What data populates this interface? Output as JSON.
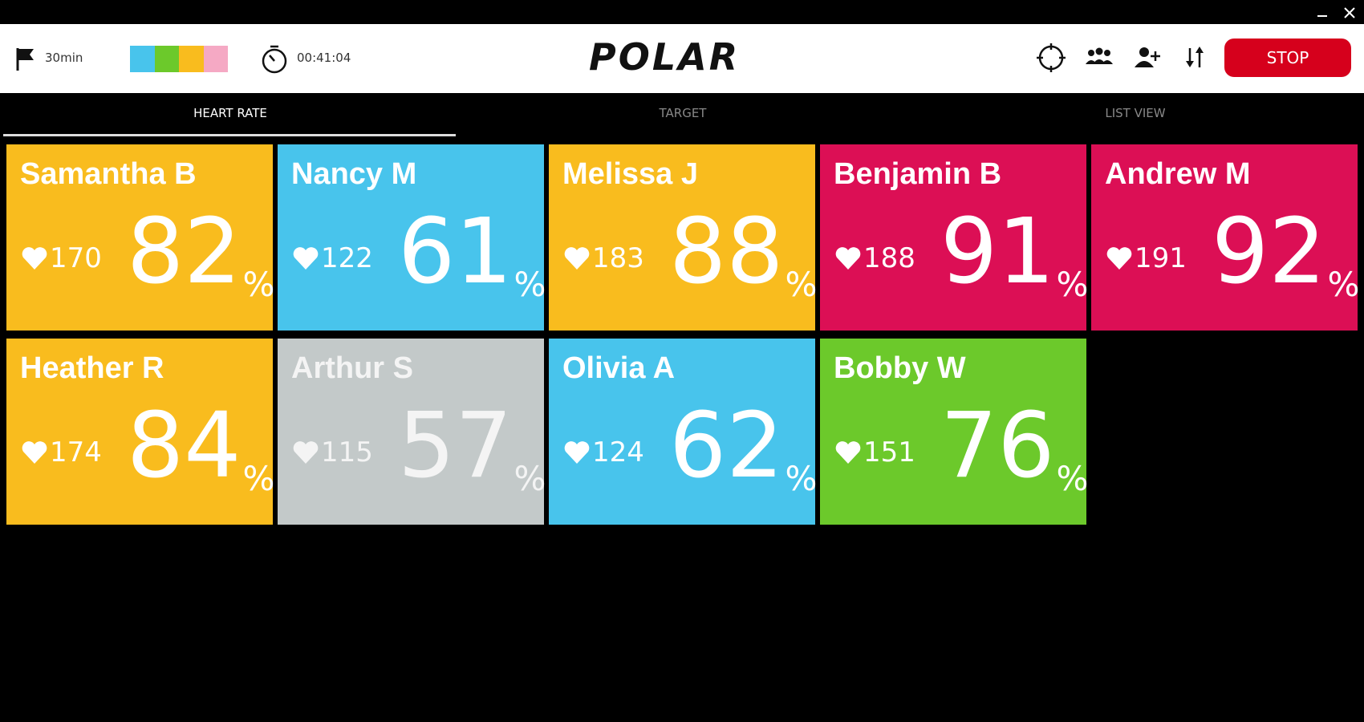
{
  "header": {
    "duration": "30min",
    "zone_colors": [
      "#48c4ec",
      "#6cc92b",
      "#f9bc1e",
      "#f5a9c4"
    ],
    "timer": "00:41:04",
    "logo": "POLAR",
    "stop": "STOP"
  },
  "tabs": [
    "HEART RATE",
    "TARGET",
    "LIST VIEW"
  ],
  "percent_unit": "%",
  "tiles": [
    {
      "name": "Samantha B",
      "heart_rate": 170,
      "percent": 82,
      "color": "#f9bc1e"
    },
    {
      "name": "Nancy M",
      "heart_rate": 122,
      "percent": 61,
      "color": "#48c4ec"
    },
    {
      "name": "Melissa J",
      "heart_rate": 183,
      "percent": 88,
      "color": "#f9bc1e"
    },
    {
      "name": "Benjamin B",
      "heart_rate": 188,
      "percent": 91,
      "color": "#dc0f55"
    },
    {
      "name": "Andrew M",
      "heart_rate": 191,
      "percent": 92,
      "color": "#dc0f55"
    },
    {
      "name": "Heather R",
      "heart_rate": 174,
      "percent": 84,
      "color": "#f9bc1e"
    },
    {
      "name": "Arthur S",
      "heart_rate": 115,
      "percent": 57,
      "color": "#c3c9c9"
    },
    {
      "name": "Olivia A",
      "heart_rate": 124,
      "percent": 62,
      "color": "#48c4ec"
    },
    {
      "name": "Bobby W",
      "heart_rate": 151,
      "percent": 76,
      "color": "#6cc92b"
    }
  ]
}
